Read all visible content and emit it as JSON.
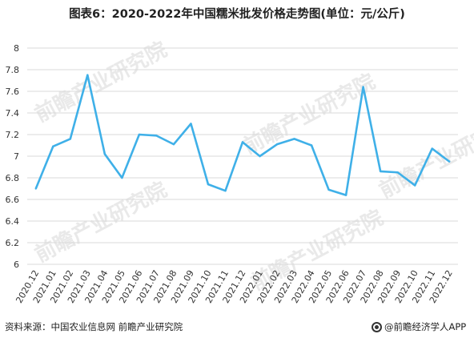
{
  "title": "图表6：2020-2022年中国糯米批发价格走势图(单位：元/公斤)",
  "footer": {
    "source": "资料来源：中国农业信息网 前瞻产业研究院",
    "brand": "@前瞻经济学人APP"
  },
  "watermark": "前瞻产业研究院",
  "colors": {
    "line": "#3fb0e8",
    "grid": "#d9d9d9",
    "text": "#333333"
  },
  "chart_data": {
    "type": "line",
    "title": "图表6：2020-2022年中国糯米批发价格走势图(单位：元/公斤)",
    "xlabel": "",
    "ylabel": "",
    "ylim": [
      6,
      8
    ],
    "yticks": [
      6,
      6.2,
      6.4,
      6.6,
      6.8,
      7,
      7.2,
      7.4,
      7.6,
      7.8,
      8
    ],
    "grid": true,
    "categories": [
      "2020.12",
      "2021.01",
      "2021.02",
      "2021.03",
      "2021.04",
      "2021.05",
      "2021.06",
      "2021.07",
      "2021.08",
      "2021.09",
      "2021.10",
      "2021.11",
      "2021.12",
      "2022.01",
      "2022.02",
      "2022.03",
      "2022.04",
      "2022.05",
      "2022.06",
      "2022.07",
      "2022.08",
      "2022.09",
      "2022.10",
      "2022.11",
      "2022.12"
    ],
    "series": [
      {
        "values": [
          6.7,
          7.09,
          7.16,
          7.75,
          7.02,
          6.8,
          7.2,
          7.19,
          7.11,
          7.3,
          6.74,
          6.68,
          7.13,
          7.0,
          7.11,
          7.16,
          7.1,
          6.69,
          6.64,
          7.64,
          6.86,
          6.85,
          6.73,
          7.07,
          6.95
        ]
      }
    ]
  }
}
